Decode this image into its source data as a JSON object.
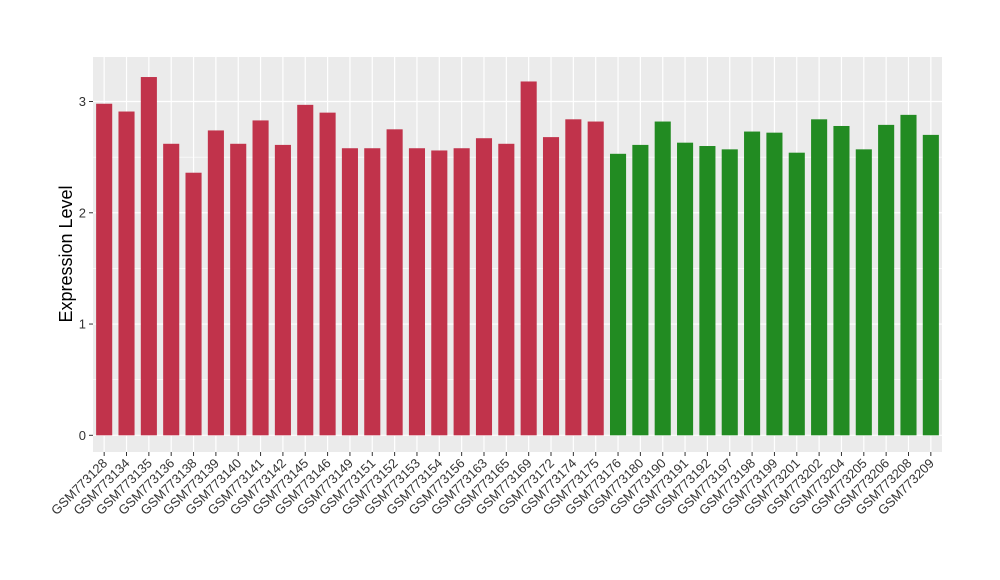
{
  "chart_data": {
    "type": "bar",
    "title": "",
    "xlabel": "",
    "ylabel": "Expression Level",
    "ylim": [
      -0.15,
      3.4
    ],
    "yticks": [
      0,
      1,
      2,
      3
    ],
    "grid": true,
    "background": "#EBEBEB",
    "gridline_color": "#FFFFFF",
    "categories": [
      "GSM773128",
      "GSM773134",
      "GSM773135",
      "GSM773136",
      "GSM773138",
      "GSM773139",
      "GSM773140",
      "GSM773141",
      "GSM773142",
      "GSM773145",
      "GSM773146",
      "GSM773149",
      "GSM773151",
      "GSM773152",
      "GSM773153",
      "GSM773154",
      "GSM773156",
      "GSM773163",
      "GSM773165",
      "GSM773169",
      "GSM773172",
      "GSM773174",
      "GSM773175",
      "GSM773176",
      "GSM773180",
      "GSM773190",
      "GSM773191",
      "GSM773192",
      "GSM773197",
      "GSM773198",
      "GSM773199",
      "GSM773201",
      "GSM773202",
      "GSM773204",
      "GSM773205",
      "GSM773206",
      "GSM773208",
      "GSM773209"
    ],
    "values": [
      2.98,
      2.91,
      3.22,
      2.62,
      2.36,
      2.74,
      2.62,
      2.83,
      2.61,
      2.97,
      2.9,
      2.58,
      2.58,
      2.75,
      2.58,
      2.56,
      2.58,
      2.67,
      2.62,
      3.18,
      2.68,
      2.84,
      2.82,
      2.53,
      2.61,
      2.82,
      2.63,
      2.6,
      2.57,
      2.73,
      2.72,
      2.54,
      2.84,
      2.78,
      2.57,
      2.79,
      2.88,
      2.7
    ],
    "bar_colors": [
      "#C1334B",
      "#C1334B",
      "#C1334B",
      "#C1334B",
      "#C1334B",
      "#C1334B",
      "#C1334B",
      "#C1334B",
      "#C1334B",
      "#C1334B",
      "#C1334B",
      "#C1334B",
      "#C1334B",
      "#C1334B",
      "#C1334B",
      "#C1334B",
      "#C1334B",
      "#C1334B",
      "#C1334B",
      "#C1334B",
      "#C1334B",
      "#C1334B",
      "#C1334B",
      "#228B22",
      "#228B22",
      "#228B22",
      "#228B22",
      "#228B22",
      "#228B22",
      "#228B22",
      "#228B22",
      "#228B22",
      "#228B22",
      "#228B22",
      "#228B22",
      "#228B22",
      "#228B22",
      "#228B22"
    ]
  }
}
